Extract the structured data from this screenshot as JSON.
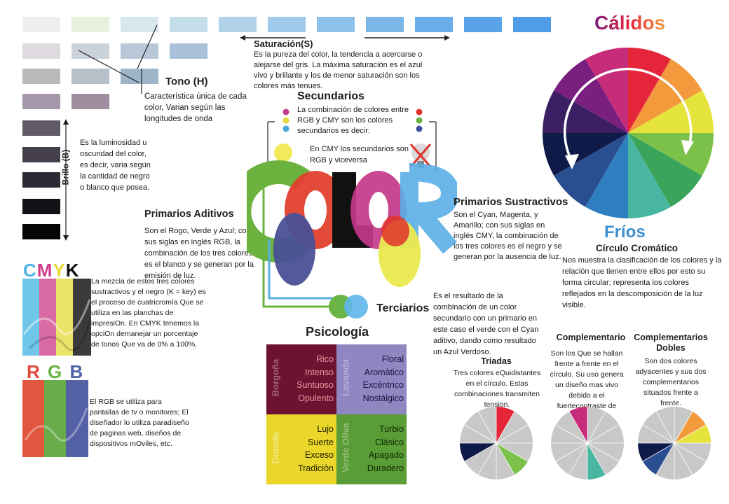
{
  "tone": {
    "title": "Tono (H)",
    "text": "Característica única de cada color, Varian según las longitudes de onda"
  },
  "saturation": {
    "title": "Saturación(S)",
    "text": "Es la pureza del color, la tendencia a acercarse o alejarse del gris. La máxima saturación es el azul vivo y brillante y los de menor saturación son los colores más tenues."
  },
  "brightness": {
    "label": "Brillo (B)",
    "text": "Es la luminosidad u oscuridad del color, es decir, varia según la cantidad de negro o blanco que posea."
  },
  "additive": {
    "title": "Primarios Aditivos",
    "text": "Son el Rogo, Verde y Azul; con sus siglas en inglés RGB, la combinación de los tres colores es el blanco y se generan por la emisión de luz."
  },
  "cmyk": {
    "letters": [
      "C",
      "M",
      "Y",
      "K"
    ],
    "text": "La mezcla de estos tres colores sustractivos y el negro (K = key) es el proceso de cuatricromía Que se utiliza en las planchas de impresiOn. En CMYK tenemos la opciOn demanejar un porcentaje de tonos Que va de  0% a 100%."
  },
  "rgb": {
    "letters": [
      "R",
      "G",
      "B"
    ],
    "text": "El RGB se utiliza para pantallas de tv o monitores; El diseñador lo utiliza paradiseño de paginas web, diseños de dispositivos mOviles, etc."
  },
  "secondary": {
    "title": "Secundarios",
    "text": "La combinación de colores entre RGB y CMY son los colores secundarios es decir:",
    "note": "En CMY los secundarios son RGB y viceversa"
  },
  "subtractive": {
    "title": "Primarios Sustractivos",
    "text": "Son el Cyan, Magenta, y Amarillo; con sus siglas en inglés CMY, la combinación de los tres colores es el negro y se generan por la ausencia de luz."
  },
  "tertiary": {
    "title": "Terciarios",
    "text": "Es el resultado de la combinación de un color secundario con un primario en este caso el verde con el Cyan aditivo, dando como resultado un Azul Verdoso."
  },
  "wheel": {
    "warm": "Cálidos",
    "cold": "Fríos",
    "title": "Círculo Cromático",
    "text": "Nos muestra la clasificación de los colores y la relación que tienen entre ellos por esto su forma circular; representa los colores reflejados en la descomposición de la luz visible.",
    "segments": [
      "#e5263a",
      "#f39b3c",
      "#e4e43c",
      "#7cc24a",
      "#3aa45a",
      "#49b6a2",
      "#2f7fc0",
      "#2a4f90",
      "#0e1a47",
      "#3b1f62",
      "#7a1f7e",
      "#c72c7a"
    ]
  },
  "psychology": {
    "title": "Psicología",
    "cells": [
      {
        "name": "Borgoña",
        "words": [
          "Rico",
          "Intenso",
          "Suntuoso",
          "Opulento"
        ],
        "color": "#6e1231"
      },
      {
        "name": "Lavanda",
        "words": [
          "Floral",
          "Aromàtico",
          "Excèntrico",
          "Nostàlgico"
        ],
        "color": "#8f86c2"
      },
      {
        "name": "Dorado",
        "words": [
          "Lujo",
          "Suerte",
          "Exceso",
          "Tradiciòn"
        ],
        "color": "#ead72a"
      },
      {
        "name": "Verde Oliva",
        "words": [
          "Turbio",
          "Clàsico",
          "Apagado",
          "Duradero"
        ],
        "color": "#5a9c36"
      }
    ]
  },
  "harmonies": [
    {
      "title": "Triadas",
      "text": "Tres colores eQuidistantes en el círculo. Estas combinaciones transmiten tension."
    },
    {
      "title": "Complementario",
      "text": "Son los Que se hallan frente a frente en el círculo. Su uso genera un diseño mas vivo debido a el fuertecontraste de colores."
    },
    {
      "title": "Complementarios Dobles",
      "text": "Son dos colores adyacentes y sus dos complementarios situados frente a frente."
    }
  ],
  "big_word": [
    "C",
    "O",
    "L",
    "O",
    "R"
  ]
}
